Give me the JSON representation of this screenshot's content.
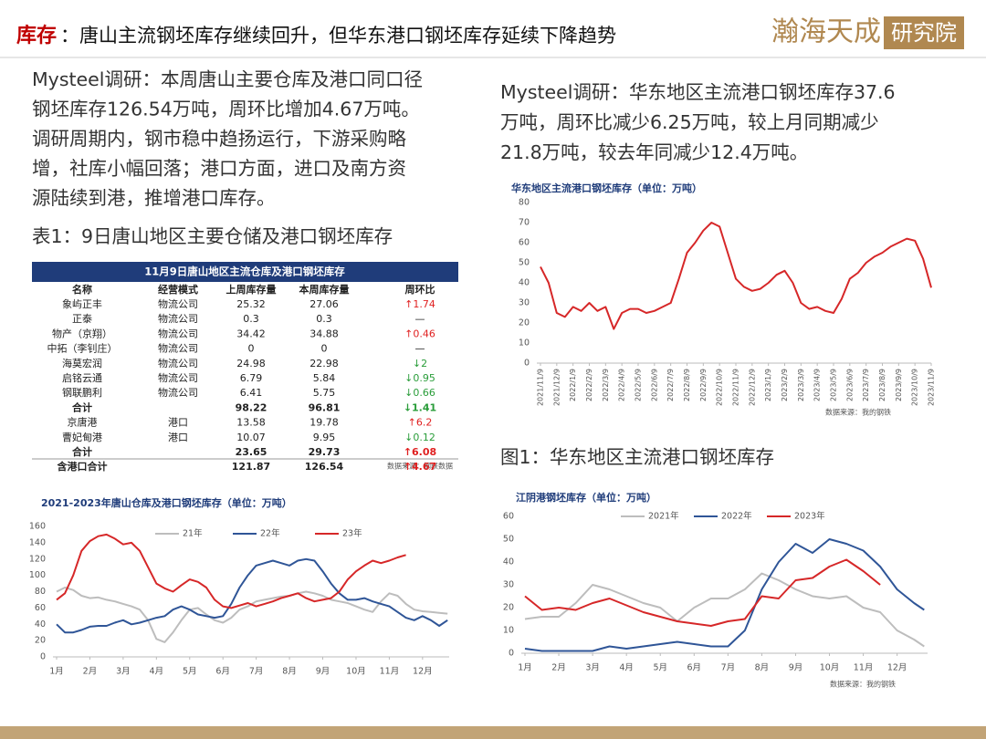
{
  "header": {
    "title_label": "库存",
    "title_text": "：唐山主流钢坯库存继续回升，但华东港口钢坯库存延续下降趋势",
    "logo": "瀚海天成",
    "logo_box": "研究院"
  },
  "left_text": [
    "Mysteel调研：本周唐山主要仓库及港口同口径",
    "钢坯库存126.54万吨，周环比增加4.67万吨。",
    "调研周期内，钢市稳中趋扬运行，下游采购略",
    "增，社库小幅回落；港口方面，进口及南方资",
    "源陆续到港，推增港口库存。"
  ],
  "table_caption": "表1：9日唐山地区主要仓储及港口钢坯库存",
  "table": {
    "title": "11月9日唐山地区主流仓库及港口钢坯库存",
    "columns": [
      "名称",
      "经营模式",
      "上周库存量",
      "本周库存量",
      "周环比"
    ],
    "rows": [
      [
        "象屿正丰",
        "物流公司",
        "25.32",
        "27.06",
        "↑1.74"
      ],
      [
        "正泰",
        "物流公司",
        "0.3",
        "0.3",
        "—"
      ],
      [
        "物产（京翔）",
        "物流公司",
        "34.42",
        "34.88",
        "↑0.46"
      ],
      [
        "中拓（李钊庄）",
        "物流公司",
        "0",
        "0",
        "—"
      ],
      [
        "海莫宏润",
        "物流公司",
        "24.98",
        "22.98",
        "↓2"
      ],
      [
        "启铭云通",
        "物流公司",
        "6.79",
        "5.84",
        "↓0.95"
      ],
      [
        "钢联鹏利",
        "物流公司",
        "6.41",
        "5.75",
        "↓0.66"
      ],
      [
        "合计",
        "98.22",
        "96.81",
        "↓1.41"
      ],
      [
        "京唐港",
        "港口",
        "13.58",
        "19.78",
        "↑6.2"
      ],
      [
        "曹妃甸港",
        "港口",
        "10.07",
        "9.95",
        "↓0.12"
      ],
      [
        "合计",
        "23.65",
        "29.73",
        "↑6.08"
      ],
      [
        "含港口合计",
        "121.87",
        "126.54",
        "↑4.67"
      ]
    ],
    "source": "数据来源：钢联数据"
  },
  "right_text": [
    "Mysteel调研：华东地区主流港口钢坯库存37.6",
    "万吨，周环比减少6.25万吨，较上月同期减少",
    "21.8万吨，较去年同减少12.4万吨。"
  ],
  "figure_caption": "图1：华东地区主流港口钢坯库存",
  "chart_data": [
    {
      "type": "line",
      "title": "2021-2023年唐山仓库及港口钢坯库存（单位：万吨）",
      "x": [
        1,
        1.25,
        1.5,
        1.75,
        2,
        2.25,
        2.5,
        2.75,
        3,
        3.25,
        3.5,
        3.75,
        4,
        4.25,
        4.5,
        4.75,
        5,
        5.25,
        5.5,
        5.75,
        6,
        6.25,
        6.5,
        6.75,
        7,
        7.25,
        7.5,
        7.75,
        8,
        8.25,
        8.5,
        8.75,
        9,
        9.25,
        9.5,
        9.75,
        10,
        10.25,
        10.5,
        10.75,
        11,
        11.25,
        11.5,
        11.75,
        12,
        12.25,
        12.5,
        12.75
      ],
      "xlim": [
        1,
        12.8
      ],
      "xticks": [
        {
          "value": 1,
          "label": "1月"
        },
        {
          "value": 2,
          "label": "2月"
        },
        {
          "value": 3,
          "label": "3月"
        },
        {
          "value": 4,
          "label": "4月"
        },
        {
          "value": 5,
          "label": "5月"
        },
        {
          "value": 6,
          "label": "6月"
        },
        {
          "value": 7,
          "label": "7月"
        },
        {
          "value": 8,
          "label": "8月"
        },
        {
          "value": 9,
          "label": "9月"
        },
        {
          "value": 10,
          "label": "10月"
        },
        {
          "value": 11,
          "label": "11月"
        },
        {
          "value": 12,
          "label": "12月"
        }
      ],
      "ylim": [
        0,
        160
      ],
      "yticks": [
        0,
        20,
        40,
        60,
        80,
        100,
        120,
        140,
        160
      ],
      "grid": false,
      "series": [
        {
          "name": "21年",
          "color": "#bdbdbd",
          "values": [
            80,
            85,
            82,
            75,
            72,
            73,
            70,
            68,
            65,
            62,
            58,
            45,
            22,
            18,
            30,
            45,
            58,
            60,
            52,
            45,
            42,
            48,
            58,
            62,
            68,
            70,
            72,
            74,
            75,
            78,
            80,
            78,
            75,
            70,
            68,
            66,
            62,
            58,
            55,
            68,
            78,
            75,
            65,
            58,
            56,
            55,
            54,
            53
          ]
        },
        {
          "name": "22年",
          "color": "#2f5597",
          "values": [
            40,
            30,
            30,
            33,
            37,
            38,
            38,
            42,
            45,
            40,
            42,
            45,
            48,
            50,
            58,
            62,
            58,
            52,
            50,
            48,
            50,
            65,
            85,
            100,
            112,
            115,
            118,
            115,
            112,
            118,
            120,
            118,
            105,
            90,
            78,
            70,
            70,
            72,
            68,
            65,
            62,
            55,
            48,
            45,
            50,
            45,
            38,
            45
          ]
        },
        {
          "name": "23年",
          "color": "#d62728",
          "values": [
            70,
            78,
            100,
            130,
            142,
            148,
            150,
            145,
            138,
            140,
            130,
            110,
            90,
            84,
            80,
            88,
            95,
            92,
            85,
            70,
            62,
            60,
            63,
            66,
            62,
            65,
            68,
            72,
            75,
            78,
            72,
            68,
            70,
            72,
            80,
            95,
            105,
            112,
            118,
            115,
            118,
            122,
            125,
            null,
            null,
            null,
            null,
            null
          ]
        }
      ]
    },
    {
      "type": "line",
      "title": "华东地区主流港口钢坯库存（单位：万吨）",
      "source": "数据来源：我的钢铁",
      "x": [
        0,
        0.5,
        1,
        1.5,
        2,
        2.5,
        3,
        3.5,
        4,
        4.5,
        5,
        5.5,
        6,
        6.5,
        7,
        7.5,
        8,
        8.5,
        9,
        9.5,
        10,
        10.5,
        11,
        11.5,
        12,
        12.5,
        13,
        13.5,
        14,
        14.5,
        15,
        15.5,
        16,
        16.5,
        17,
        17.5,
        18,
        18.5,
        19,
        19.5,
        20,
        20.5,
        21,
        21.5,
        22,
        22.5,
        23,
        23.5,
        24
      ],
      "xlim": [
        0,
        24
      ],
      "xticks": [
        {
          "value": 0,
          "label": "2021/11/9"
        },
        {
          "value": 1,
          "label": "2021/12/9"
        },
        {
          "value": 2,
          "label": "2022/1/9"
        },
        {
          "value": 3,
          "label": "2022/2/9"
        },
        {
          "value": 4,
          "label": "2022/3/9"
        },
        {
          "value": 5,
          "label": "2022/4/9"
        },
        {
          "value": 6,
          "label": "2022/5/9"
        },
        {
          "value": 7,
          "label": "2022/6/9"
        },
        {
          "value": 8,
          "label": "2022/7/9"
        },
        {
          "value": 9,
          "label": "2022/8/9"
        },
        {
          "value": 10,
          "label": "2022/9/9"
        },
        {
          "value": 11,
          "label": "2022/10/9"
        },
        {
          "value": 12,
          "label": "2022/11/9"
        },
        {
          "value": 13,
          "label": "2022/12/9"
        },
        {
          "value": 14,
          "label": "2023/1/9"
        },
        {
          "value": 15,
          "label": "2023/2/9"
        },
        {
          "value": 16,
          "label": "2023/3/9"
        },
        {
          "value": 17,
          "label": "2023/4/9"
        },
        {
          "value": 18,
          "label": "2023/5/9"
        },
        {
          "value": 19,
          "label": "2023/6/9"
        },
        {
          "value": 20,
          "label": "2023/7/9"
        },
        {
          "value": 21,
          "label": "2023/8/9"
        },
        {
          "value": 22,
          "label": "2023/9/9"
        },
        {
          "value": 23,
          "label": "2023/10/9"
        },
        {
          "value": 24,
          "label": "2023/11/9"
        }
      ],
      "ylim": [
        0,
        80
      ],
      "yticks": [
        0,
        10,
        20,
        30,
        40,
        50,
        60,
        70,
        80
      ],
      "grid": false,
      "series": [
        {
          "color": "#d62728",
          "values": [
            48,
            40,
            25,
            23,
            28,
            26,
            30,
            26,
            28,
            17,
            25,
            27,
            27,
            25,
            26,
            28,
            30,
            42,
            55,
            60,
            66,
            70,
            68,
            55,
            42,
            38,
            36,
            37,
            40,
            44,
            46,
            40,
            30,
            27,
            28,
            26,
            25,
            32,
            42,
            45,
            50,
            53,
            55,
            58,
            60,
            62,
            61,
            52,
            37.6
          ]
        }
      ]
    },
    {
      "type": "line",
      "title": "江阴港钢坯库存（单位：万吨）",
      "source": "数据来源：我的钢铁",
      "x": [
        1,
        1.5,
        2,
        2.5,
        3,
        3.5,
        4,
        4.5,
        5,
        5.5,
        6,
        6.5,
        7,
        7.5,
        8,
        8.5,
        9,
        9.5,
        10,
        10.5,
        11,
        11.5,
        12,
        12.5,
        12.8
      ],
      "xlim": [
        1,
        12.9
      ],
      "xticks": [
        {
          "value": 1,
          "label": "1月"
        },
        {
          "value": 2,
          "label": "2月"
        },
        {
          "value": 3,
          "label": "3月"
        },
        {
          "value": 4,
          "label": "4月"
        },
        {
          "value": 5,
          "label": "5月"
        },
        {
          "value": 6,
          "label": "6月"
        },
        {
          "value": 7,
          "label": "7月"
        },
        {
          "value": 8,
          "label": "8月"
        },
        {
          "value": 9,
          "label": "9月"
        },
        {
          "value": 10,
          "label": "10月"
        },
        {
          "value": 11,
          "label": "11月"
        },
        {
          "value": 12,
          "label": "12月"
        }
      ],
      "ylim": [
        0,
        60
      ],
      "yticks": [
        0,
        10,
        20,
        30,
        40,
        50,
        60
      ],
      "grid": false,
      "series": [
        {
          "name": "2021年",
          "color": "#bdbdbd",
          "values": [
            15,
            16,
            16,
            22,
            30,
            28,
            25,
            22,
            20,
            14,
            20,
            24,
            24,
            28,
            35,
            32,
            28,
            25,
            24,
            25,
            20,
            18,
            10,
            6,
            3
          ]
        },
        {
          "name": "2022年",
          "color": "#2f5597",
          "values": [
            2,
            1,
            1,
            1,
            1,
            3,
            2,
            3,
            4,
            5,
            4,
            3,
            3,
            10,
            28,
            40,
            48,
            44,
            50,
            48,
            45,
            38,
            28,
            22,
            19
          ]
        },
        {
          "name": "2023年",
          "color": "#d62728",
          "values": [
            25,
            19,
            20,
            19,
            22,
            24,
            21,
            18,
            16,
            14,
            13,
            12,
            14,
            15,
            25,
            24,
            32,
            33,
            38,
            41,
            36,
            30,
            null,
            null,
            null
          ]
        }
      ]
    }
  ]
}
